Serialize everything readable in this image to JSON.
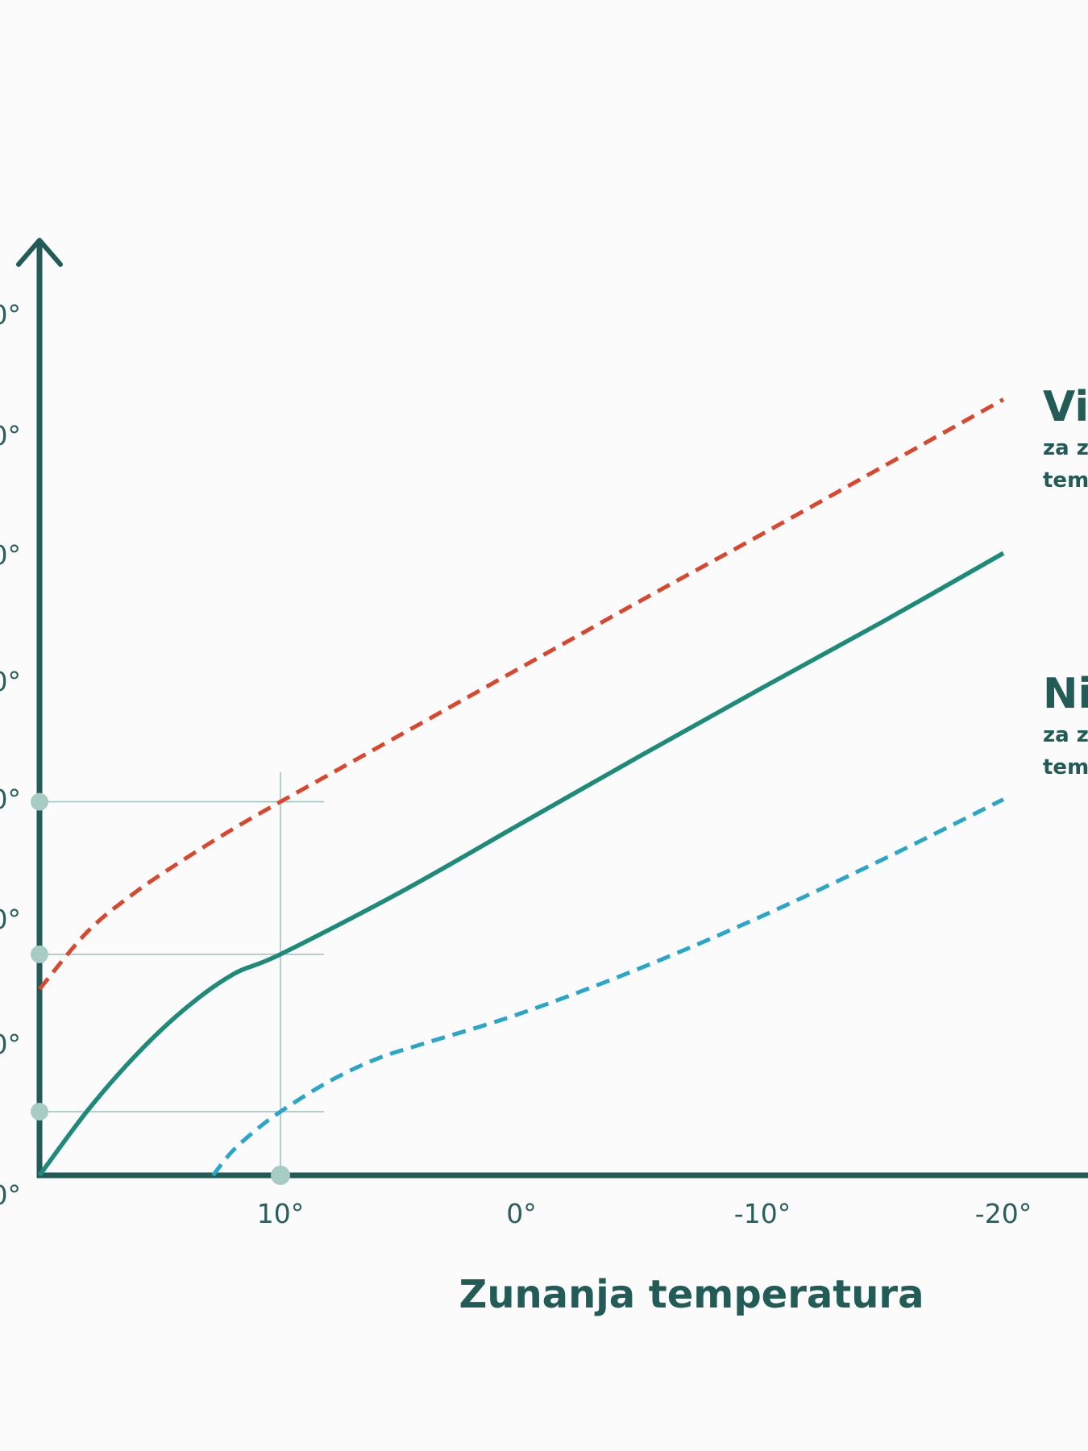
{
  "chart_data": {
    "type": "line",
    "title": "",
    "xlabel": "Zunanja temperatura",
    "ylabel": "",
    "xlim": [
      20,
      -20
    ],
    "ylim": [
      20,
      90
    ],
    "x_ticks": [
      "10°",
      "0°",
      "-10°",
      "-20°"
    ],
    "y_ticks": [
      "0°",
      "0°",
      "0°",
      "0°",
      "0°",
      "0°",
      "0°",
      "0°"
    ],
    "grid": false,
    "series": [
      {
        "name": "Vis",
        "subtitle": [
          "za z",
          "tem"
        ],
        "style": "dashed",
        "color": "#d9472e",
        "x": [
          20,
          18,
          16,
          14,
          12,
          10,
          5,
          0,
          -5,
          -10,
          -15,
          -20
        ],
        "y": [
          35.5,
          40.3,
          43.6,
          46.3,
          48.8,
          51.1,
          56.7,
          62.3,
          67.9,
          73.4,
          79.0,
          84.6
        ]
      },
      {
        "name": "",
        "style": "solid",
        "color": "#1e8a7a",
        "x": [
          20,
          18,
          16,
          14,
          12,
          10,
          5,
          0,
          -5,
          -10,
          -15,
          -20
        ],
        "y": [
          20.0,
          25.4,
          30.0,
          33.8,
          36.7,
          38.4,
          43.6,
          49.3,
          55.0,
          60.6,
          66.1,
          71.8
        ]
      },
      {
        "name": "Ni",
        "subtitle": [
          "za z",
          "tem"
        ],
        "style": "dashed",
        "color": "#2aa6c8",
        "x": [
          12.8,
          12,
          11,
          10,
          8,
          6,
          4,
          0,
          -5,
          -10,
          -15,
          -20
        ],
        "y": [
          20.0,
          22.0,
          23.8,
          25.3,
          27.8,
          29.7,
          31.0,
          33.5,
          37.3,
          41.6,
          46.3,
          51.3
        ]
      }
    ],
    "guide_points": [
      {
        "x": 10,
        "y": 51.1
      },
      {
        "x": 10,
        "y": 38.4
      },
      {
        "x": 10,
        "y": 25.3
      }
    ],
    "colors": {
      "axis": "#235b57",
      "guide": "#9fc7bf",
      "marker": "#a7ccc2"
    }
  }
}
